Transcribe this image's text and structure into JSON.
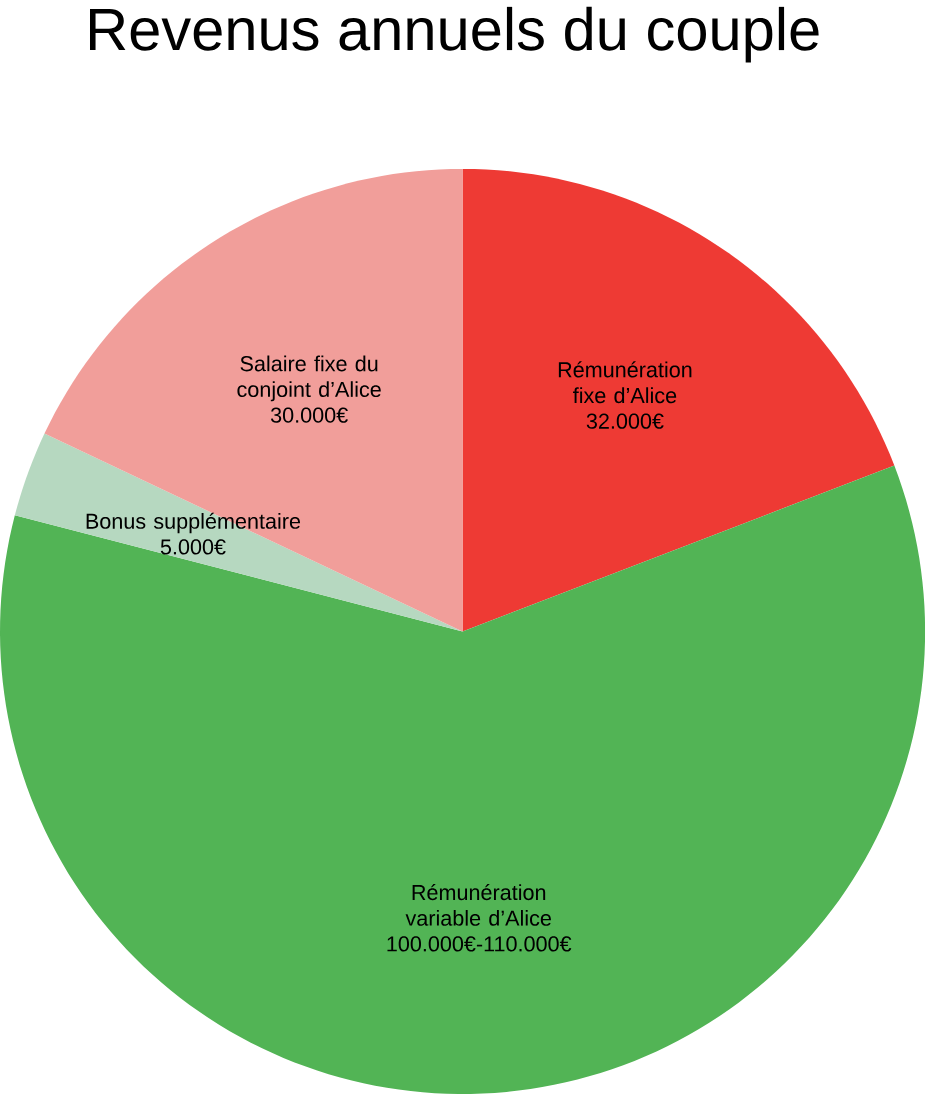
{
  "chart_data": {
    "type": "pie",
    "title": "Revenus annuels du couple",
    "categories": [
      "Rémunération fixe d’Alice",
      "Rémunération variable d’Alice",
      "Bonus supplémentaire",
      "Salaire fixe du conjoint d’Alice"
    ],
    "values": [
      32000,
      100000,
      5000,
      30000
    ],
    "value_labels": [
      "32.000€",
      "100.000€-110.000€",
      "5.000€",
      "30.000€"
    ],
    "colors": [
      "#ee3a34",
      "#52b455",
      "#b6d8c0",
      "#f19e9a"
    ]
  }
}
